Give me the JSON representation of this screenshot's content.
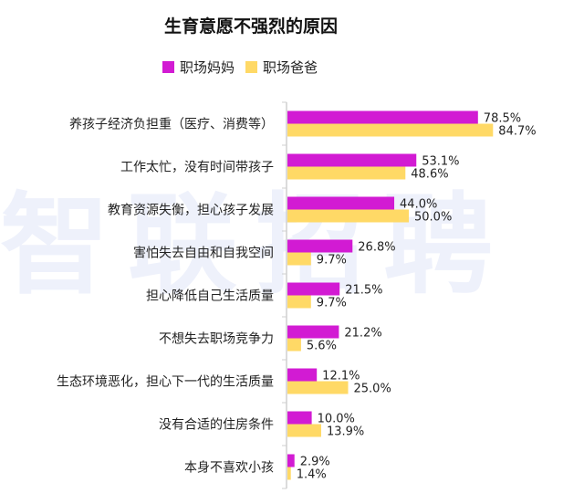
{
  "watermark": "智联招聘",
  "chart_data": {
    "type": "bar",
    "orientation": "horizontal",
    "title": "生育意愿不强烈的原因",
    "categories": [
      "养孩子经济负担重（医疗、消费等）",
      "工作太忙，没有时间带孩子",
      "教育资源失衡，担心孩子发展",
      "害怕失去自由和自我空间",
      "担心降低自己生活质量",
      "不想失去职场竞争力",
      "生态环境恶化，担心下一代的生活质量",
      "没有合适的住房条件",
      "本身不喜欢小孩"
    ],
    "series": [
      {
        "name": "职场妈妈",
        "color": "#d21bd3",
        "values": [
          78.5,
          53.1,
          44.0,
          26.8,
          21.5,
          21.2,
          12.1,
          10.0,
          2.9
        ],
        "labels": [
          "78.5%",
          "53.1%",
          "44.0%",
          "26.8%",
          "21.5%",
          "21.2%",
          "12.1%",
          "10.0%",
          "2.9%"
        ]
      },
      {
        "name": "职场爸爸",
        "color": "#ffd966",
        "values": [
          84.7,
          48.6,
          50.0,
          9.7,
          9.7,
          5.6,
          25.0,
          13.9,
          1.4
        ],
        "labels": [
          "84.7%",
          "48.6%",
          "50.0%",
          "9.7%",
          "9.7%",
          "5.6%",
          "25.0%",
          "13.9%",
          "1.4%"
        ]
      }
    ],
    "xlim": [
      0,
      100
    ],
    "grid": false,
    "legend_position": "top"
  }
}
